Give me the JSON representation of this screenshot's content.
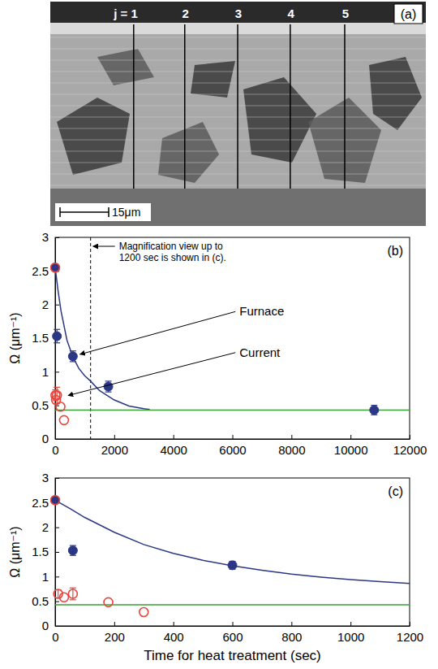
{
  "micrograph": {
    "panel_label": "(a)",
    "line_labels": [
      "j = 1",
      "2",
      "3",
      "4",
      "5"
    ],
    "scale_bar": "15μm"
  },
  "chart_data": [
    {
      "type": "scatter",
      "panel_label": "(b)",
      "y_label": "Ω (μm⁻¹)",
      "xlim": [
        0,
        12000
      ],
      "xticks": [
        0,
        2000,
        4000,
        6000,
        8000,
        10000,
        12000
      ],
      "ylim": [
        0,
        3
      ],
      "yticks": [
        0,
        0.5,
        1,
        1.5,
        2,
        2.5,
        3
      ],
      "series": [
        {
          "type": "line",
          "color": "#2b3785",
          "line_style": "solid",
          "x": [
            0,
            50,
            100,
            200,
            400,
            600,
            800,
            1000,
            1200,
            1500,
            2000,
            2500,
            3000,
            3200
          ],
          "values": [
            2.55,
            2.38,
            2.2,
            1.9,
            1.47,
            1.22,
            1.05,
            0.94,
            0.86,
            0.72,
            0.58,
            0.49,
            0.45,
            0.44
          ]
        },
        {
          "type": "line",
          "color": "#3a9d3a",
          "line_style": "solid",
          "x": [
            0,
            12000
          ],
          "values": [
            0.43,
            0.43
          ]
        },
        {
          "type": "scatter",
          "color": "#2b3785",
          "marker": "filled-circle",
          "x": [
            0,
            60,
            600,
            1800,
            10800
          ],
          "values": [
            2.55,
            1.53,
            1.23,
            0.78,
            0.43
          ],
          "errors": [
            null,
            0.1,
            0.08,
            0.08,
            0.07
          ]
        },
        {
          "type": "scatter",
          "color": "#e8453c",
          "marker": "open-circle",
          "x": [
            0,
            10,
            30,
            60,
            180,
            300
          ],
          "values": [
            2.55,
            0.65,
            0.58,
            0.65,
            0.48,
            0.28
          ],
          "errors": [
            null,
            0.08,
            null,
            0.12,
            null,
            null
          ]
        }
      ],
      "annotations": [
        {
          "text": "Furnace",
          "x": 600,
          "y": 1.23
        },
        {
          "text": "Current",
          "x": 200,
          "y": 0.62
        },
        {
          "lines": [
            "Magnification view up to",
            "1200 sec is shown in (c)."
          ],
          "x": 1200,
          "line_style": "dashed"
        }
      ]
    },
    {
      "type": "scatter",
      "panel_label": "(c)",
      "y_label": "Ω (μm⁻¹)",
      "x_label": "Time for heat treatment (sec)",
      "xlim": [
        0,
        1200
      ],
      "xticks": [
        0,
        200,
        400,
        600,
        800,
        1000,
        1200
      ],
      "ylim": [
        0,
        3
      ],
      "yticks": [
        0,
        0.5,
        1,
        1.5,
        2,
        2.5,
        3
      ],
      "series": [
        {
          "type": "line",
          "color": "#2b3785",
          "line_style": "solid",
          "x": [
            0,
            50,
            100,
            200,
            300,
            400,
            500,
            600,
            700,
            800,
            900,
            1000,
            1100,
            1200
          ],
          "values": [
            2.55,
            2.38,
            2.2,
            1.9,
            1.65,
            1.47,
            1.33,
            1.22,
            1.13,
            1.05,
            0.99,
            0.94,
            0.9,
            0.86
          ]
        },
        {
          "type": "line",
          "color": "#3a9d3a",
          "line_style": "solid",
          "x": [
            0,
            1200
          ],
          "values": [
            0.43,
            0.43
          ]
        },
        {
          "type": "scatter",
          "color": "#2b3785",
          "marker": "filled-circle",
          "x": [
            0,
            60,
            600
          ],
          "values": [
            2.55,
            1.53,
            1.23
          ],
          "errors": [
            null,
            0.1,
            0.08
          ]
        },
        {
          "type": "scatter",
          "color": "#e8453c",
          "marker": "open-circle",
          "x": [
            0,
            10,
            30,
            60,
            180,
            300
          ],
          "values": [
            2.55,
            0.65,
            0.58,
            0.65,
            0.48,
            0.28
          ],
          "errors": [
            null,
            0.08,
            null,
            0.12,
            null,
            null
          ]
        }
      ]
    }
  ]
}
